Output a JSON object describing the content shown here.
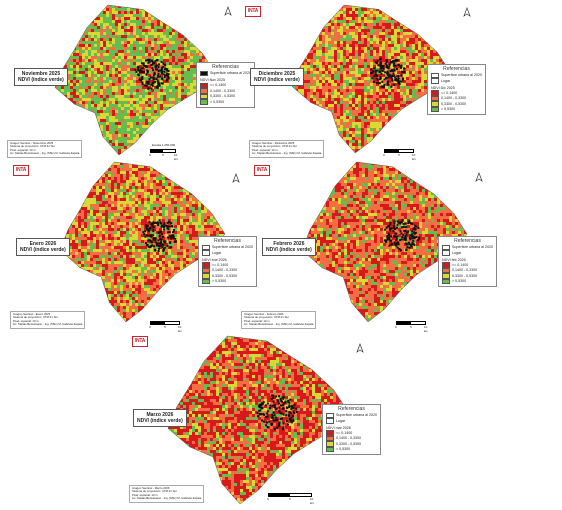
{
  "colors": {
    "c1": "#d7191c",
    "c2": "#f46d43",
    "c3": "#d9d936",
    "c4": "#66bd4f",
    "urban": "#111111"
  },
  "panels": [
    {
      "title_line1": "Noviembre 2025",
      "title_line2": "NDVI (índice verde)",
      "legend_title": "Referencias",
      "legend_urban": "Superficie urbana al 2020",
      "legend_lugar": "",
      "legend_ndvi": "NDVI Nov 2025",
      "classes": [
        "<= 0,1400",
        "0,1400 - 0,3300",
        "0,3300 - 0,5300",
        "> 0,5300"
      ],
      "meta": [
        "Imagen Sentinel - Noviembre 2025",
        "Sistema de proyección: UTM 21 Sur",
        "Pixel: espacial: 10 m",
        "Lic. Matías Bertolosano - Ing. (MSc) M. Gabriela Zapata"
      ],
      "scale_labels": [
        "0",
        "5",
        "10 km"
      ],
      "scale_text": "Escala 1:250.000",
      "palette": [
        "#d7191c",
        "#f46d43",
        "#d9d936",
        "#66bd4f",
        "#66bd4f",
        "#d9d936",
        "#66bd4f"
      ]
    },
    {
      "title_line1": "Diciembre 2025",
      "title_line2": "NDVI (índice verde)",
      "legend_title": "Referencias",
      "legend_urban": "Superficie urbana al 2020",
      "legend_lugar": "Lugar",
      "legend_ndvi": "NDVI Dic 2025",
      "classes": [
        "<= 0,1400",
        "0,1400 - 0,3300",
        "0,3300 - 0,5300",
        "> 0,5300"
      ],
      "meta": [
        "Imagen Sentinel - Diciembre 2025",
        "Sistema de proyección: UTM 21 Sur",
        "Pixel: espacial: 10 m",
        "Lic. Matías Bertolosano - Ing. (MSc) M. Gabriela Zapata"
      ],
      "scale_labels": [
        "0",
        "5",
        "10 km"
      ],
      "scale_text": "",
      "palette": [
        "#d7191c",
        "#f46d43",
        "#f46d43",
        "#d9d936",
        "#66bd4f",
        "#d9d936",
        "#d7191c"
      ]
    },
    {
      "title_line1": "Enero 2026",
      "title_line2": "NDVI (índice verde)",
      "legend_title": "Referencias",
      "legend_urban": "Superficie urbana al 2020",
      "legend_lugar": "Lugar",
      "legend_ndvi": "NDVI ene 2026",
      "classes": [
        "<= 0,1400",
        "0,1400 - 0,3300",
        "0,3300 - 0,5300",
        "> 0,5300"
      ],
      "meta": [
        "Imagen Sentinel - Enero 2026",
        "Sistema de proyección: UTM 21 Sur",
        "Pixel: espacial: 10 m",
        "Lic. Matías Bertolosano - Ing. (MSc) M. Gabriela Zapata"
      ],
      "scale_labels": [
        "0",
        "5",
        "10 km"
      ],
      "scale_text": "",
      "palette": [
        "#d7191c",
        "#f46d43",
        "#f46d43",
        "#d9d936",
        "#d9d936",
        "#d7191c",
        "#66bd4f"
      ]
    },
    {
      "title_line1": "Febrero 2026",
      "title_line2": "NDVI (índice verde)",
      "legend_title": "Referencias",
      "legend_urban": "Superficie urbana al 2020",
      "legend_lugar": "Lugar",
      "legend_ndvi": "NDVI feb 2026",
      "classes": [
        "<= 0,1400",
        "0,1400 - 0,3300",
        "0,3300 - 0,5300",
        "> 0,5300"
      ],
      "meta": [
        "Imagen Sentinel - Febrero 2026",
        "Sistema de proyección: UTM 21 Sur",
        "Pixel: espacial: 10 m",
        "Lic. Matías Bertolosano - Ing. (MSc) M. Gabriela Zapata"
      ],
      "scale_labels": [
        "0",
        "5",
        "10 km"
      ],
      "scale_text": "",
      "palette": [
        "#d7191c",
        "#f46d43",
        "#f46d43",
        "#d9d936",
        "#d7191c",
        "#66bd4f",
        "#f46d43"
      ]
    },
    {
      "title_line1": "Marzo 2026",
      "title_line2": "NDVI (índice verde)",
      "legend_title": "Referencias",
      "legend_urban": "Superficie urbana al 2020",
      "legend_lugar": "Lugar",
      "legend_ndvi": "NDVI mar 2026",
      "classes": [
        "<= 0,1400",
        "0,1400 - 0,3300",
        "0,3300 - 0,5300",
        "> 0,5300"
      ],
      "meta": [
        "Imagen Sentinel - Marzo 2026",
        "Sistema de proyección: UTM 21 Sur",
        "Pixel: espacial: 10 m",
        "Lic. Matías Bertolosano - Ing. (MSc) M. Gabriela Zapata"
      ],
      "scale_labels": [
        "0",
        "5",
        "10 km"
      ],
      "scale_text": "",
      "palette": [
        "#d7191c",
        "#d7191c",
        "#f46d43",
        "#d9d936",
        "#66bd4f",
        "#f46d43",
        "#d7191c"
      ]
    }
  ],
  "logo_text": "INTA",
  "north_symbol": "north-arrow-icon"
}
